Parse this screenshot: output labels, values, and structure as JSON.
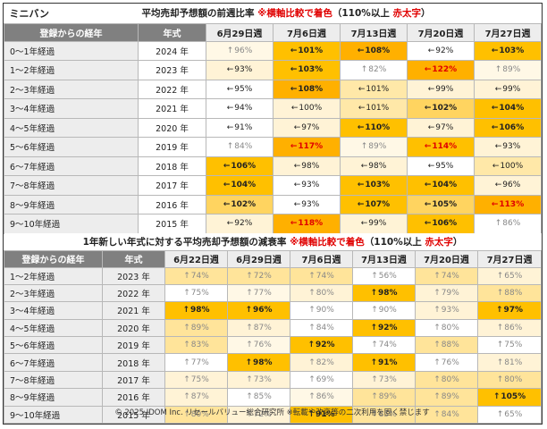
{
  "table1": {
    "title_left": "ミニバン",
    "title_main": "平均売却予想額の前週比率",
    "title_note": "※横軸比較で着色",
    "title_paren_open": "（110%以上",
    "title_red": "赤太字",
    "title_paren_close": "）",
    "col_label": "登録からの経年",
    "col_year": "年式",
    "dates": [
      "6月29日週",
      "7月6日週",
      "7月13日週",
      "7月20日週",
      "7月27日週"
    ],
    "rows": [
      {
        "label": "0～1年経過",
        "year": "2024 年",
        "cells": [
          {
            "arrow": "↑",
            "text": "96%",
            "bg": "#fff8e6",
            "style": "lo"
          },
          {
            "arrow": "←",
            "text": "101%",
            "bg": "#ffc000",
            "style": "hi"
          },
          {
            "arrow": "←",
            "text": "108%",
            "bg": "#ffb000",
            "style": "hi"
          },
          {
            "arrow": "←",
            "text": "92%",
            "bg": "#ffffff",
            "style": ""
          },
          {
            "arrow": "←",
            "text": "103%",
            "bg": "#ffc000",
            "style": "hi"
          }
        ]
      },
      {
        "label": "1～2年経過",
        "year": "2023 年",
        "cells": [
          {
            "arrow": "←",
            "text": "93%",
            "bg": "#fff3d6",
            "style": ""
          },
          {
            "arrow": "←",
            "text": "103%",
            "bg": "#ffc000",
            "style": "hi"
          },
          {
            "arrow": "↑",
            "text": "82%",
            "bg": "#ffffff",
            "style": "lo"
          },
          {
            "arrow": "←",
            "text": "122%",
            "bg": "#ffb000",
            "style": "rd"
          },
          {
            "arrow": "↑",
            "text": "89%",
            "bg": "#fff8e6",
            "style": "lo"
          }
        ]
      },
      {
        "label": "2～3年経過",
        "year": "2022 年",
        "cells": [
          {
            "arrow": "←",
            "text": "95%",
            "bg": "#ffffff",
            "style": ""
          },
          {
            "arrow": "←",
            "text": "108%",
            "bg": "#ffb000",
            "style": "hi"
          },
          {
            "arrow": "←",
            "text": "101%",
            "bg": "#ffe8a8",
            "style": ""
          },
          {
            "arrow": "←",
            "text": "99%",
            "bg": "#fff3d6",
            "style": ""
          },
          {
            "arrow": "←",
            "text": "99%",
            "bg": "#fff3d6",
            "style": ""
          }
        ]
      },
      {
        "label": "3～4年経過",
        "year": "2021 年",
        "cells": [
          {
            "arrow": "←",
            "text": "94%",
            "bg": "#ffffff",
            "style": ""
          },
          {
            "arrow": "←",
            "text": "100%",
            "bg": "#fff3d6",
            "style": ""
          },
          {
            "arrow": "←",
            "text": "101%",
            "bg": "#ffe8a8",
            "style": ""
          },
          {
            "arrow": "←",
            "text": "102%",
            "bg": "#ffd460",
            "style": "hi"
          },
          {
            "arrow": "←",
            "text": "104%",
            "bg": "#ffc000",
            "style": "hi"
          }
        ]
      },
      {
        "label": "4～5年経過",
        "year": "2020 年",
        "cells": [
          {
            "arrow": "←",
            "text": "91%",
            "bg": "#ffffff",
            "style": ""
          },
          {
            "arrow": "←",
            "text": "97%",
            "bg": "#fff3d6",
            "style": ""
          },
          {
            "arrow": "←",
            "text": "110%",
            "bg": "#ffc000",
            "style": "hi"
          },
          {
            "arrow": "←",
            "text": "97%",
            "bg": "#fff3d6",
            "style": ""
          },
          {
            "arrow": "←",
            "text": "106%",
            "bg": "#ffc000",
            "style": "hi"
          }
        ]
      },
      {
        "label": "5～6年経過",
        "year": "2019 年",
        "cells": [
          {
            "arrow": "↑",
            "text": "84%",
            "bg": "#ffffff",
            "style": "lo"
          },
          {
            "arrow": "←",
            "text": "117%",
            "bg": "#ffb000",
            "style": "rd"
          },
          {
            "arrow": "↑",
            "text": "89%",
            "bg": "#fff8e6",
            "style": "lo"
          },
          {
            "arrow": "←",
            "text": "114%",
            "bg": "#ffc000",
            "style": "rd"
          },
          {
            "arrow": "←",
            "text": "93%",
            "bg": "#fff3d6",
            "style": ""
          }
        ]
      },
      {
        "label": "6～7年経過",
        "year": "2018 年",
        "cells": [
          {
            "arrow": "←",
            "text": "106%",
            "bg": "#ffc000",
            "style": "hi"
          },
          {
            "arrow": "←",
            "text": "98%",
            "bg": "#fff3d6",
            "style": ""
          },
          {
            "arrow": "←",
            "text": "98%",
            "bg": "#fff3d6",
            "style": ""
          },
          {
            "arrow": "←",
            "text": "95%",
            "bg": "#ffffff",
            "style": ""
          },
          {
            "arrow": "←",
            "text": "100%",
            "bg": "#ffe8a8",
            "style": ""
          }
        ]
      },
      {
        "label": "7～8年経過",
        "year": "2017 年",
        "cells": [
          {
            "arrow": "←",
            "text": "104%",
            "bg": "#ffc000",
            "style": "hi"
          },
          {
            "arrow": "←",
            "text": "93%",
            "bg": "#ffffff",
            "style": ""
          },
          {
            "arrow": "←",
            "text": "103%",
            "bg": "#ffc000",
            "style": "hi"
          },
          {
            "arrow": "←",
            "text": "104%",
            "bg": "#ffc000",
            "style": "hi"
          },
          {
            "arrow": "←",
            "text": "96%",
            "bg": "#fff3d6",
            "style": ""
          }
        ]
      },
      {
        "label": "8～9年経過",
        "year": "2016 年",
        "cells": [
          {
            "arrow": "←",
            "text": "102%",
            "bg": "#ffd460",
            "style": "hi"
          },
          {
            "arrow": "←",
            "text": "93%",
            "bg": "#ffffff",
            "style": ""
          },
          {
            "arrow": "←",
            "text": "107%",
            "bg": "#ffc000",
            "style": "hi"
          },
          {
            "arrow": "←",
            "text": "105%",
            "bg": "#ffd460",
            "style": "hi"
          },
          {
            "arrow": "←",
            "text": "113%",
            "bg": "#ffb000",
            "style": "rd"
          }
        ]
      },
      {
        "label": "9～10年経過",
        "year": "2015 年",
        "cells": [
          {
            "arrow": "←",
            "text": "92%",
            "bg": "#fff3d6",
            "style": ""
          },
          {
            "arrow": "←",
            "text": "118%",
            "bg": "#ffb000",
            "style": "rd"
          },
          {
            "arrow": "←",
            "text": "99%",
            "bg": "#fff3d6",
            "style": ""
          },
          {
            "arrow": "←",
            "text": "106%",
            "bg": "#ffc000",
            "style": "hi"
          },
          {
            "arrow": "↑",
            "text": "86%",
            "bg": "#ffffff",
            "style": "lo"
          }
        ]
      }
    ]
  },
  "table2": {
    "title_main": "1年新しい年式に対する平均売却予想額の減衰率",
    "title_note": "※横軸比較で着色",
    "title_paren_open": "（110%以上",
    "title_red": "赤太字",
    "title_paren_close": "）",
    "col_label": "登録からの経年",
    "col_year": "年式",
    "dates": [
      "6月22日週",
      "6月29日週",
      "7月6日週",
      "7月13日週",
      "7月20日週",
      "7月27日週"
    ],
    "rows": [
      {
        "label": "1～2年経過",
        "year": "2023 年",
        "cells": [
          {
            "arrow": "↑",
            "text": "74%",
            "bg": "#ffe49a",
            "style": "lo"
          },
          {
            "arrow": "↑",
            "text": "72%",
            "bg": "#ffe49a",
            "style": "lo"
          },
          {
            "arrow": "↑",
            "text": "74%",
            "bg": "#ffe49a",
            "style": "lo"
          },
          {
            "arrow": "↑",
            "text": "56%",
            "bg": "#ffffff",
            "style": "lo"
          },
          {
            "arrow": "↑",
            "text": "74%",
            "bg": "#ffe49a",
            "style": "lo"
          },
          {
            "arrow": "↑",
            "text": "65%",
            "bg": "#fff3d6",
            "style": "lo"
          }
        ]
      },
      {
        "label": "2～3年経過",
        "year": "2022 年",
        "cells": [
          {
            "arrow": "↑",
            "text": "75%",
            "bg": "#ffffff",
            "style": "lo"
          },
          {
            "arrow": "↑",
            "text": "77%",
            "bg": "#fff8e6",
            "style": "lo"
          },
          {
            "arrow": "↑",
            "text": "80%",
            "bg": "#fff3d6",
            "style": "lo"
          },
          {
            "arrow": "↑",
            "text": "98%",
            "bg": "#ffc000",
            "style": "hi"
          },
          {
            "arrow": "↑",
            "text": "79%",
            "bg": "#fff3d6",
            "style": "lo"
          },
          {
            "arrow": "↑",
            "text": "88%",
            "bg": "#ffe49a",
            "style": "lo"
          }
        ]
      },
      {
        "label": "3～4年経過",
        "year": "2021 年",
        "cells": [
          {
            "arrow": "↑",
            "text": "98%",
            "bg": "#ffc000",
            "style": "hi"
          },
          {
            "arrow": "↑",
            "text": "96%",
            "bg": "#ffc000",
            "style": "hi"
          },
          {
            "arrow": "↑",
            "text": "90%",
            "bg": "#ffffff",
            "style": "lo"
          },
          {
            "arrow": "↑",
            "text": "90%",
            "bg": "#ffffff",
            "style": "lo"
          },
          {
            "arrow": "↑",
            "text": "93%",
            "bg": "#fff3d6",
            "style": "lo"
          },
          {
            "arrow": "↑",
            "text": "97%",
            "bg": "#ffc000",
            "style": "hi"
          }
        ]
      },
      {
        "label": "4～5年経過",
        "year": "2020 年",
        "cells": [
          {
            "arrow": "↑",
            "text": "89%",
            "bg": "#ffe49a",
            "style": "lo"
          },
          {
            "arrow": "↑",
            "text": "87%",
            "bg": "#fff3d6",
            "style": "lo"
          },
          {
            "arrow": "↑",
            "text": "84%",
            "bg": "#ffffff",
            "style": "lo"
          },
          {
            "arrow": "↑",
            "text": "92%",
            "bg": "#ffc000",
            "style": "hi"
          },
          {
            "arrow": "↑",
            "text": "80%",
            "bg": "#ffffff",
            "style": "lo"
          },
          {
            "arrow": "↑",
            "text": "86%",
            "bg": "#fff3d6",
            "style": "lo"
          }
        ]
      },
      {
        "label": "5～6年経過",
        "year": "2019 年",
        "cells": [
          {
            "arrow": "↑",
            "text": "83%",
            "bg": "#ffe49a",
            "style": "lo"
          },
          {
            "arrow": "↑",
            "text": "76%",
            "bg": "#fff8e6",
            "style": "lo"
          },
          {
            "arrow": "↑",
            "text": "92%",
            "bg": "#ffc000",
            "style": "hi"
          },
          {
            "arrow": "↑",
            "text": "74%",
            "bg": "#ffffff",
            "style": "lo"
          },
          {
            "arrow": "↑",
            "text": "88%",
            "bg": "#ffe49a",
            "style": "lo"
          },
          {
            "arrow": "↑",
            "text": "75%",
            "bg": "#ffffff",
            "style": "lo"
          }
        ]
      },
      {
        "label": "6～7年経過",
        "year": "2018 年",
        "cells": [
          {
            "arrow": "↑",
            "text": "77%",
            "bg": "#ffffff",
            "style": "lo"
          },
          {
            "arrow": "↑",
            "text": "98%",
            "bg": "#ffc000",
            "style": "hi"
          },
          {
            "arrow": "↑",
            "text": "82%",
            "bg": "#fff3d6",
            "style": "lo"
          },
          {
            "arrow": "↑",
            "text": "91%",
            "bg": "#ffc000",
            "style": "hi"
          },
          {
            "arrow": "↑",
            "text": "76%",
            "bg": "#ffffff",
            "style": "lo"
          },
          {
            "arrow": "↑",
            "text": "81%",
            "bg": "#fff3d6",
            "style": "lo"
          }
        ]
      },
      {
        "label": "7～8年経過",
        "year": "2017 年",
        "cells": [
          {
            "arrow": "↑",
            "text": "75%",
            "bg": "#fff3d6",
            "style": "lo"
          },
          {
            "arrow": "↑",
            "text": "73%",
            "bg": "#fff3d6",
            "style": "lo"
          },
          {
            "arrow": "↑",
            "text": "69%",
            "bg": "#ffffff",
            "style": "lo"
          },
          {
            "arrow": "↑",
            "text": "73%",
            "bg": "#fff3d6",
            "style": "lo"
          },
          {
            "arrow": "↑",
            "text": "80%",
            "bg": "#ffe49a",
            "style": "lo"
          },
          {
            "arrow": "↑",
            "text": "80%",
            "bg": "#ffe49a",
            "style": "lo"
          }
        ]
      },
      {
        "label": "8～9年経過",
        "year": "2016 年",
        "cells": [
          {
            "arrow": "↑",
            "text": "87%",
            "bg": "#fff3d6",
            "style": "lo"
          },
          {
            "arrow": "↑",
            "text": "85%",
            "bg": "#ffffff",
            "style": "lo"
          },
          {
            "arrow": "↑",
            "text": "86%",
            "bg": "#fff8e6",
            "style": "lo"
          },
          {
            "arrow": "↑",
            "text": "89%",
            "bg": "#ffe49a",
            "style": "lo"
          },
          {
            "arrow": "↑",
            "text": "89%",
            "bg": "#ffe49a",
            "style": "lo"
          },
          {
            "arrow": "↑",
            "text": "105%",
            "bg": "#ffc000",
            "style": "hi"
          }
        ]
      },
      {
        "label": "9～10年経過",
        "year": "2015 年",
        "cells": [
          {
            "arrow": "↑",
            "text": "80%",
            "bg": "#ffe49a",
            "style": "lo"
          },
          {
            "arrow": "↑",
            "text": "72%",
            "bg": "#fff3d6",
            "style": "lo"
          },
          {
            "arrow": "↑",
            "text": "91%",
            "bg": "#ffc000",
            "style": "hi"
          },
          {
            "arrow": "↑",
            "text": "85%",
            "bg": "#ffe49a",
            "style": "lo"
          },
          {
            "arrow": "↑",
            "text": "84%",
            "bg": "#ffe49a",
            "style": "lo"
          },
          {
            "arrow": "↑",
            "text": "65%",
            "bg": "#ffffff",
            "style": "lo"
          }
        ]
      }
    ]
  },
  "footer": "© 2025 IDOM Inc. リセールバリュー総合研究所 ※転載や改変等の二次利用を固く禁じます",
  "colors": {
    "header_gray": "#808080",
    "label_bg": "#ededed",
    "accent_red": "#e00000",
    "amber": "#ffc000"
  },
  "chart_data": [
    {
      "type": "table",
      "title": "平均売却予想額の前週比率",
      "columns": [
        "6月29日週",
        "7月6日週",
        "7月13日週",
        "7月20日週",
        "7月27日週"
      ],
      "rows": [
        "0～1年経過",
        "1～2年経過",
        "2～3年経過",
        "3～4年経過",
        "4～5年経過",
        "5～6年経過",
        "6～7年経過",
        "7～8年経過",
        "8～9年経過",
        "9～10年経過"
      ],
      "values": [
        [
          96,
          101,
          108,
          92,
          103
        ],
        [
          93,
          103,
          82,
          122,
          89
        ],
        [
          95,
          108,
          101,
          99,
          99
        ],
        [
          94,
          100,
          101,
          102,
          104
        ],
        [
          91,
          97,
          110,
          97,
          106
        ],
        [
          84,
          117,
          89,
          114,
          93
        ],
        [
          106,
          98,
          98,
          95,
          100
        ],
        [
          104,
          93,
          103,
          104,
          96
        ],
        [
          102,
          93,
          107,
          105,
          113
        ],
        [
          92,
          118,
          99,
          106,
          86
        ]
      ]
    },
    {
      "type": "table",
      "title": "1年新しい年式に対する平均売却予想額の減衰率",
      "columns": [
        "6月22日週",
        "6月29日週",
        "7月6日週",
        "7月13日週",
        "7月20日週",
        "7月27日週"
      ],
      "rows": [
        "1～2年経過",
        "2～3年経過",
        "3～4年経過",
        "4～5年経過",
        "5～6年経過",
        "6～7年経過",
        "7～8年経過",
        "8～9年経過",
        "9～10年経過"
      ],
      "values": [
        [
          74,
          72,
          74,
          56,
          74,
          65
        ],
        [
          75,
          77,
          80,
          98,
          79,
          88
        ],
        [
          98,
          96,
          90,
          90,
          93,
          97
        ],
        [
          89,
          87,
          84,
          92,
          80,
          86
        ],
        [
          83,
          76,
          92,
          74,
          88,
          75
        ],
        [
          77,
          98,
          82,
          91,
          76,
          81
        ],
        [
          75,
          73,
          69,
          73,
          80,
          80
        ],
        [
          87,
          85,
          86,
          89,
          89,
          105
        ],
        [
          80,
          72,
          91,
          85,
          84,
          65
        ]
      ]
    }
  ]
}
